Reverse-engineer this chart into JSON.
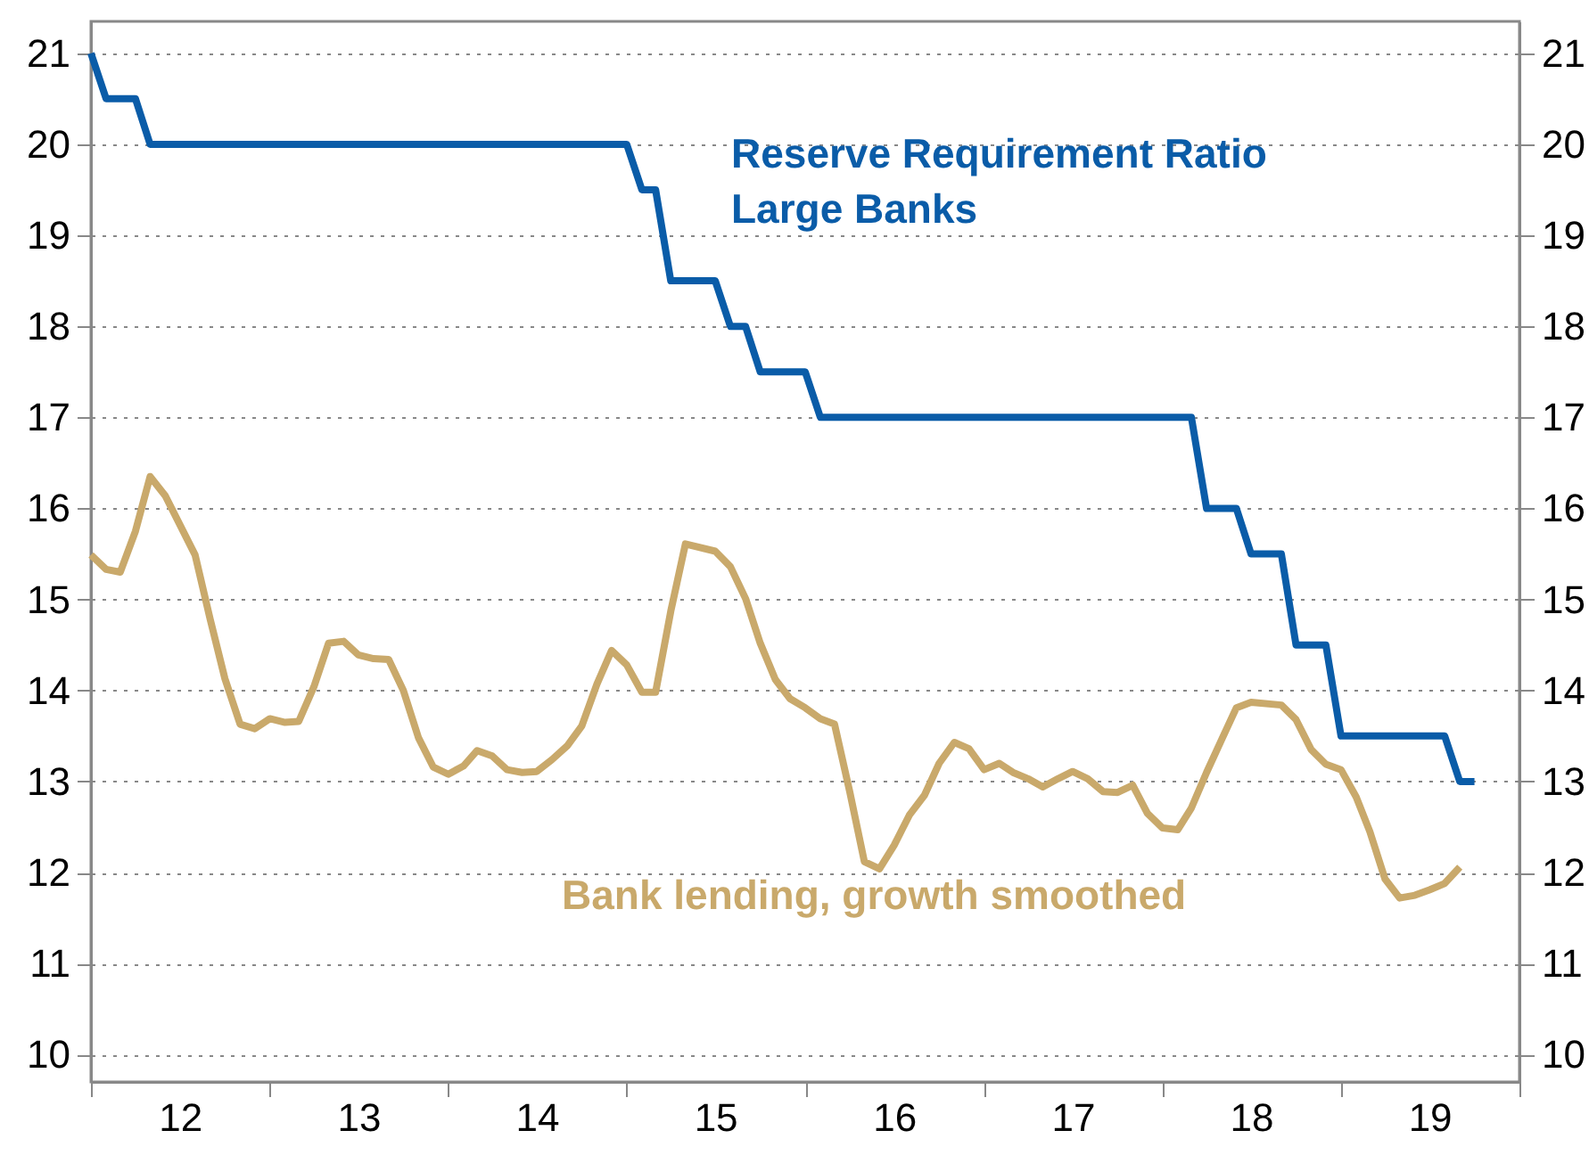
{
  "chart_data": {
    "type": "line",
    "xlim": [
      "2012-01-01",
      "2020-01-01"
    ],
    "xticks": [
      {
        "value": "2012-01-01",
        "label": null
      },
      {
        "value": "2012-07-01",
        "label": "12"
      },
      {
        "value": "2013-01-01",
        "label": null
      },
      {
        "value": "2013-07-01",
        "label": "13"
      },
      {
        "value": "2014-01-01",
        "label": null
      },
      {
        "value": "2014-07-01",
        "label": "14"
      },
      {
        "value": "2015-01-01",
        "label": null
      },
      {
        "value": "2015-07-01",
        "label": "15"
      },
      {
        "value": "2016-01-01",
        "label": null
      },
      {
        "value": "2016-07-01",
        "label": "16"
      },
      {
        "value": "2017-01-01",
        "label": null
      },
      {
        "value": "2017-07-01",
        "label": "17"
      },
      {
        "value": "2018-01-01",
        "label": null
      },
      {
        "value": "2018-07-01",
        "label": "18"
      },
      {
        "value": "2019-01-01",
        "label": null
      },
      {
        "value": "2019-07-01",
        "label": "19"
      },
      {
        "value": "2020-01-01",
        "label": null
      }
    ],
    "ylim": [
      9.7,
      21.35
    ],
    "yticks": [
      10,
      11,
      12,
      13,
      14,
      15,
      16,
      17,
      18,
      19,
      20,
      21
    ],
    "y2lim": [
      9.7,
      21.35
    ],
    "y2ticks": [
      10,
      11,
      12,
      13,
      14,
      15,
      16,
      17,
      18,
      19,
      20,
      21
    ],
    "grid": "y",
    "series": [
      {
        "name": "Reserve Requirement Ratio\nLarge Banks",
        "color": "#0a5ca8",
        "x": [
          "2012-01",
          "2012-02",
          "2012-04",
          "2012-05",
          "2015-01",
          "2015-02",
          "2015-03",
          "2015-04",
          "2015-07",
          "2015-08",
          "2015-09",
          "2015-10",
          "2016-01",
          "2016-02",
          "2018-03",
          "2018-04",
          "2018-06",
          "2018-07",
          "2018-09",
          "2018-10",
          "2018-12",
          "2019-01",
          "2019-08",
          "2019-09",
          "2019-10"
        ],
        "values": [
          21,
          20.5,
          20.5,
          20,
          20,
          19.5,
          19.5,
          18.5,
          18.5,
          18,
          18,
          17.5,
          17.5,
          17,
          17,
          16,
          16,
          15.5,
          15.5,
          14.5,
          14.5,
          13.5,
          13.5,
          13,
          13
        ]
      },
      {
        "name": "Bank lending, growth smoothed",
        "color": "#c9a96b",
        "x": [
          "2012-01",
          "2012-02",
          "2012-03",
          "2012-04",
          "2012-05",
          "2012-06",
          "2012-08",
          "2012-09",
          "2012-10",
          "2012-11",
          "2012-12",
          "2013-01",
          "2013-02",
          "2013-03",
          "2013-04",
          "2013-05",
          "2013-06",
          "2013-07",
          "2013-08",
          "2013-09",
          "2013-10",
          "2013-11",
          "2013-12",
          "2014-01",
          "2014-02",
          "2014-03",
          "2014-04",
          "2014-05",
          "2014-06",
          "2014-07",
          "2014-08",
          "2014-09",
          "2014-10",
          "2014-11",
          "2014-12",
          "2015-01",
          "2015-02",
          "2015-03",
          "2015-04",
          "2015-05",
          "2015-07",
          "2015-08",
          "2015-09",
          "2015-10",
          "2015-11",
          "2015-12",
          "2016-01",
          "2016-02",
          "2016-03",
          "2016-04",
          "2016-05",
          "2016-06",
          "2016-07",
          "2016-08",
          "2016-09",
          "2016-10",
          "2016-11",
          "2016-12",
          "2017-01",
          "2017-02",
          "2017-03",
          "2017-04",
          "2017-05",
          "2017-06",
          "2017-07",
          "2017-08",
          "2017-09",
          "2017-10",
          "2017-11",
          "2017-12",
          "2018-01",
          "2018-02",
          "2018-03",
          "2018-04",
          "2018-05",
          "2018-06",
          "2018-07",
          "2018-09",
          "2018-10",
          "2018-11",
          "2018-12",
          "2019-01",
          "2019-02",
          "2019-03",
          "2019-04",
          "2019-05",
          "2019-06",
          "2019-07",
          "2019-08",
          "2019-09"
        ],
        "values": [
          15.49,
          15.33,
          15.3,
          15.75,
          16.35,
          16.14,
          15.49,
          14.78,
          14.13,
          13.63,
          13.58,
          13.69,
          13.65,
          13.66,
          14.04,
          14.52,
          14.54,
          14.39,
          14.35,
          14.34,
          14.0,
          13.48,
          13.16,
          13.08,
          13.17,
          13.34,
          13.28,
          13.13,
          13.1,
          13.11,
          13.24,
          13.39,
          13.61,
          14.07,
          14.44,
          14.28,
          13.98,
          13.98,
          14.87,
          15.61,
          15.53,
          15.36,
          15.01,
          14.52,
          14.12,
          13.91,
          13.81,
          13.69,
          13.63,
          12.89,
          12.12,
          12.04,
          12.3,
          12.63,
          12.85,
          13.2,
          13.43,
          13.36,
          13.13,
          13.2,
          13.1,
          13.03,
          12.94,
          13.03,
          13.11,
          13.03,
          12.89,
          12.88,
          12.96,
          12.65,
          12.49,
          12.47,
          12.71,
          13.1,
          13.45,
          13.81,
          13.87,
          13.84,
          13.68,
          13.35,
          13.19,
          13.13,
          12.83,
          12.45,
          11.93,
          11.72,
          11.75,
          11.81,
          11.88,
          12.06
        ]
      }
    ]
  }
}
